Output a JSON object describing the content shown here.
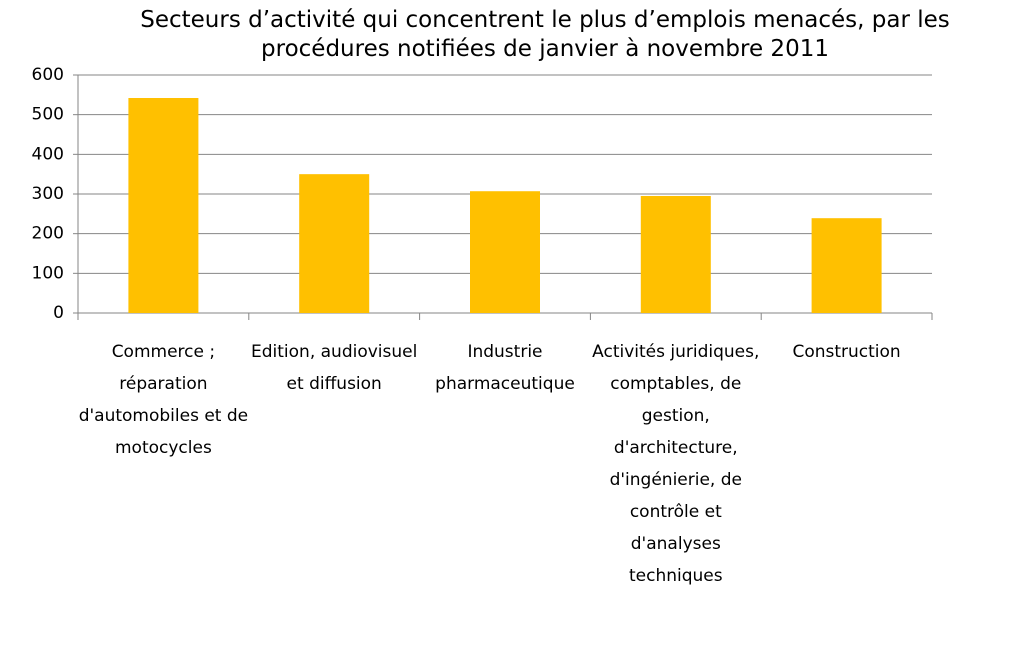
{
  "chart_data": {
    "type": "bar",
    "title": "Secteurs d’activité qui concentrent le plus d’emplois menacés, par les procédures notifiées de janvier à novembre 2011",
    "categories": [
      "Commerce ; réparation d'automobiles et de motocycles",
      "Edition, audiovisuel et diffusion",
      "Industrie pharmaceutique",
      "Activités juridiques, comptables, de gestion, d'architecture, d'ingénierie, de contrôle et d'analyses techniques",
      "Construction"
    ],
    "values": [
      542,
      350,
      307,
      295,
      239
    ],
    "color": "#ffc000",
    "ylim": [
      0,
      600
    ],
    "yticks": [
      0,
      100,
      200,
      300,
      400,
      500,
      600
    ],
    "grid": true
  }
}
